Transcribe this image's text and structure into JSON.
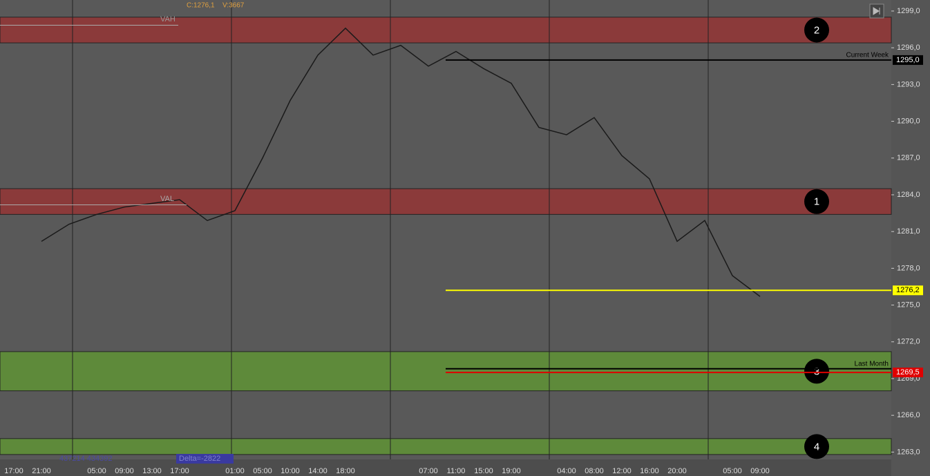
{
  "chart_data": {
    "type": "line",
    "info": [
      "C:1276,1",
      "V:3667"
    ],
    "categories": [
      "17:00",
      "21:00",
      null,
      "05:00",
      "09:00",
      "13:00",
      "17:00",
      null,
      "01:00",
      "05:00",
      "10:00",
      "14:00",
      "18:00",
      null,
      null,
      "07:00",
      "11:00",
      "15:00",
      "19:00",
      null,
      "04:00",
      "08:00",
      "12:00",
      "16:00",
      "20:00",
      null,
      "05:00",
      "09:00"
    ],
    "series": [
      {
        "color": "#1a1a1a",
        "values": [
          null,
          1280.2,
          1281.6,
          1282.4,
          1283.0,
          1283.3,
          1283.6,
          1281.9,
          1282.7,
          1287.0,
          1291.7,
          1295.4,
          1297.6,
          1295.4,
          1296.2,
          1294.5,
          1295.7,
          1294.3,
          1293.1,
          1289.5,
          1288.9,
          1290.3,
          1287.2,
          1285.3,
          1280.2,
          1281.9,
          1277.4,
          1275.7
        ]
      }
    ],
    "ylim": [
      1262.4,
      1299.9
    ],
    "yticks": [
      {
        "value": 1263,
        "label": "1263,0"
      },
      {
        "value": 1266,
        "label": "1266,0"
      },
      {
        "value": 1269,
        "label": "1269,0"
      },
      {
        "value": 1272,
        "label": "1272,0"
      },
      {
        "value": 1275,
        "label": "1275,0"
      },
      {
        "value": 1278,
        "label": "1278,0"
      },
      {
        "value": 1281,
        "label": "1281,0"
      },
      {
        "value": 1284,
        "label": "1284,0"
      },
      {
        "value": 1287,
        "label": "1287,0"
      },
      {
        "value": 1290,
        "label": "1290,0"
      },
      {
        "value": 1293,
        "label": "1293,0"
      },
      {
        "value": 1296,
        "label": "1296,0"
      },
      {
        "value": 1299,
        "label": "1299,0"
      }
    ],
    "zones": [
      {
        "label": "2",
        "range": [
          1296.4,
          1298.5
        ],
        "color": "#8b3a3a"
      },
      {
        "label": "1",
        "range": [
          1282.4,
          1284.5
        ],
        "color": "#8b3a3a"
      },
      {
        "label": "3",
        "range": [
          1268.0,
          1271.2
        ],
        "color": "#5e8a3a"
      },
      {
        "label": "4",
        "range": [
          1262.8,
          1264.1
        ],
        "color": "#5e8a3a"
      }
    ],
    "levels": [
      {
        "value": 1295.0,
        "label": "1295,0",
        "text": "Current Week",
        "color": "#000000"
      },
      {
        "value": 1276.2,
        "label": "1276,2",
        "color": "#ffff00"
      },
      {
        "value": 1269.8,
        "text": "Last Month",
        "color": "#000000"
      },
      {
        "value": 1269.5,
        "label": "1269,5",
        "color": "#e00000"
      }
    ],
    "annotations": {
      "vah": "VAH",
      "val": "VAL",
      "volume": "437214 434392",
      "delta": "Delta=-2822"
    }
  }
}
